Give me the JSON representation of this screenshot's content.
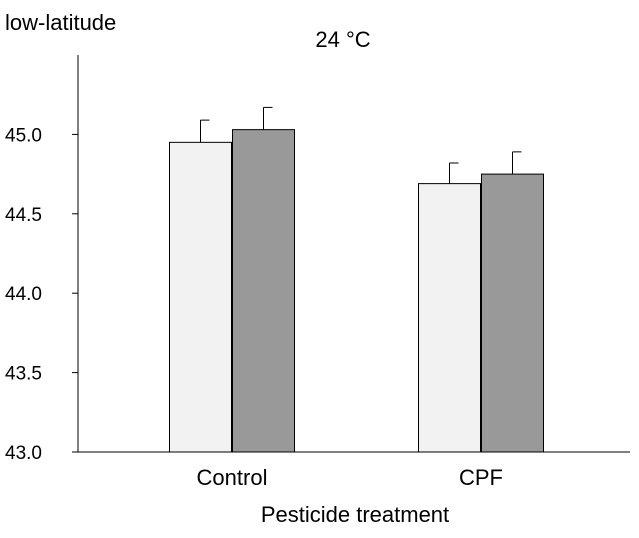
{
  "chart_data": {
    "type": "bar",
    "corner_label": "low-latitude",
    "title": "24 °C",
    "xlabel": "Pesticide treatment",
    "ylabel": "",
    "categories": [
      "Control",
      "CPF"
    ],
    "ylim": [
      43.0,
      45.5
    ],
    "yticks": [
      "43.0",
      "43.5",
      "44.0",
      "44.5",
      "45.0"
    ],
    "grid": false,
    "series": [
      {
        "values": [
          44.95,
          44.69
        ],
        "errors": [
          0.14,
          0.13
        ],
        "color": "#f2f2f2"
      },
      {
        "values": [
          45.03,
          44.75
        ],
        "errors": [
          0.14,
          0.14
        ],
        "color": "#999999"
      }
    ]
  }
}
